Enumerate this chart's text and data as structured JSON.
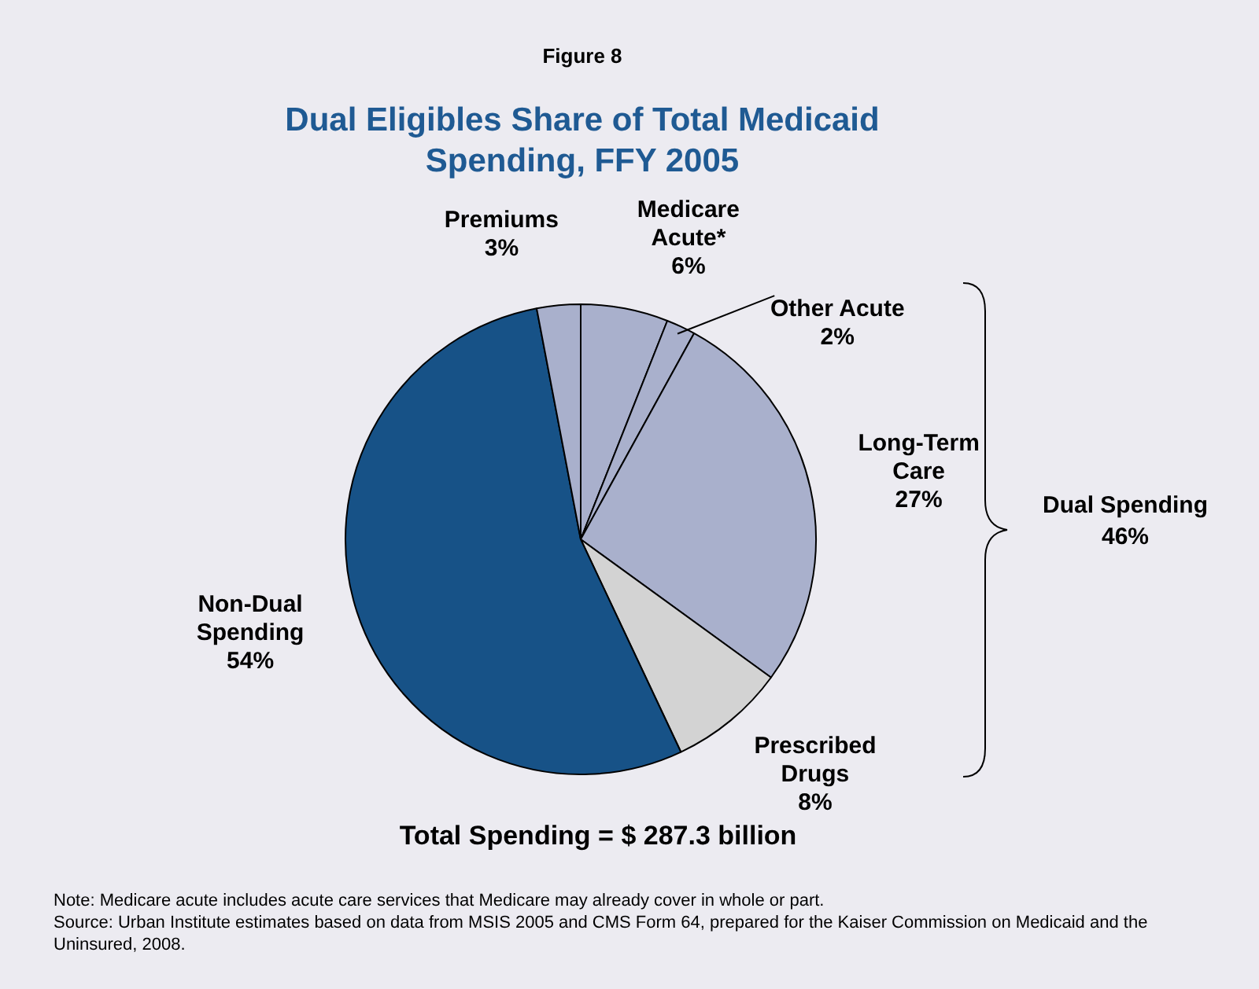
{
  "chart_data": {
    "type": "pie",
    "title": "Dual Eligibles Share of Total Medicaid Spending, FFY 2005",
    "categories": [
      "Medicare Acute*",
      "Other Acute",
      "Long-Term Care",
      "Prescribed Drugs",
      "Non-Dual Spending",
      "Premiums"
    ],
    "values": [
      6,
      2,
      27,
      8,
      54,
      3
    ],
    "value_labels": [
      "6%",
      "2%",
      "27%",
      "8%",
      "54%",
      "3%"
    ],
    "colors": [
      "#a9b0cc",
      "#a9b0cc",
      "#a9b0cc",
      "#d3d3d3",
      "#175287",
      "#a9b0cc"
    ],
    "legend": false,
    "annotations": [
      "Figure 8",
      "Dual Spending 46%",
      "Total Spending = $ 287.3 billion",
      "Note: Medicare acute includes acute care services that Medicare may already cover in whole or part.",
      "Source: Urban Institute estimates based on data from MSIS 2005 and CMS Form 64, prepared for the Kaiser Commission on Medicaid and the Uninsured, 2008."
    ]
  }
}
